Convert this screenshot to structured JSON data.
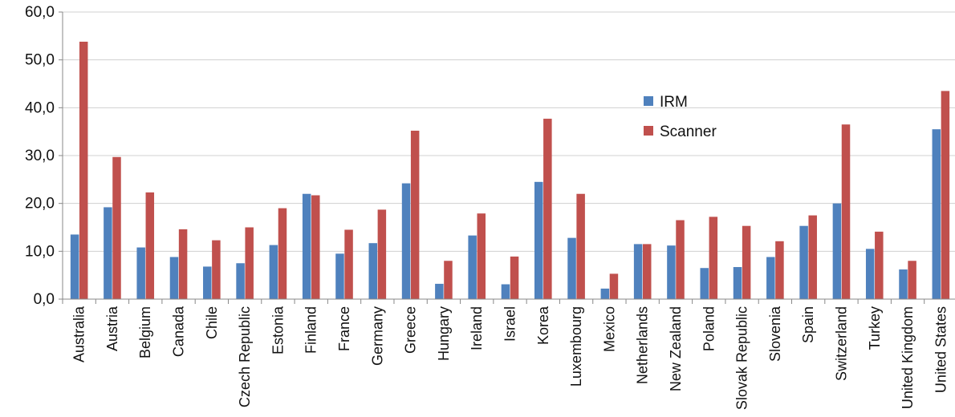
{
  "chart_data": {
    "type": "bar",
    "categories": [
      "Australia",
      "Austria",
      "Belgium",
      "Canada",
      "Chile",
      "Czech Republic",
      "Estonia",
      "Finland",
      "France",
      "Germany",
      "Greece",
      "Hungary",
      "Ireland",
      "Israel",
      "Korea",
      "Luxembourg",
      "Mexico",
      "Netherlands",
      "New Zealand",
      "Poland",
      "Slovak Republic",
      "Slovenia",
      "Spain",
      "Switzerland",
      "Turkey",
      "United Kingdom",
      "United States"
    ],
    "series": [
      {
        "name": "IRM",
        "color": "#4f81bd",
        "values": [
          13.5,
          19.2,
          10.8,
          8.8,
          6.8,
          7.5,
          11.3,
          22.0,
          9.5,
          11.7,
          24.2,
          3.2,
          13.3,
          3.1,
          24.5,
          12.8,
          2.2,
          11.5,
          11.2,
          6.5,
          6.7,
          8.8,
          15.3,
          20.0,
          10.5,
          6.2,
          35.5
        ]
      },
      {
        "name": "Scanner",
        "color": "#c0504d",
        "values": [
          53.8,
          29.7,
          22.3,
          14.6,
          12.3,
          15.0,
          19.0,
          21.7,
          14.5,
          18.7,
          35.2,
          8.0,
          17.9,
          8.9,
          37.7,
          22.0,
          5.3,
          11.5,
          16.5,
          17.2,
          15.3,
          12.1,
          17.5,
          36.5,
          14.1,
          8.0,
          43.5
        ]
      }
    ],
    "yticks": [
      "0,0",
      "10,0",
      "20,0",
      "30,0",
      "40,0",
      "50,0",
      "60,0"
    ],
    "ylim": [
      0,
      60
    ],
    "grid": true,
    "legend": "inside-upper-right"
  }
}
